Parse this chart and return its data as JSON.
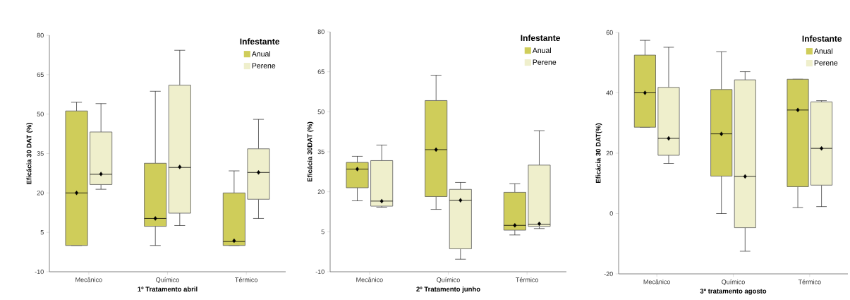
{
  "chart_data": [
    {
      "type": "box",
      "categories": [
        "Mecânico",
        "Químico",
        "Térmico"
      ],
      "xlabel": "1º Tratamento abril",
      "ylabel": "Eficácia 30 DAT (%)",
      "ylim": [
        -10,
        80
      ],
      "yticks": [
        -10,
        5,
        20,
        35,
        50,
        65,
        80
      ],
      "legend": "top right",
      "legend_title": "Infestante",
      "series": [
        {
          "name": "Anual",
          "color": "#cfcd5a",
          "boxes": [
            {
              "low": 0,
              "q1": 0,
              "median": 20,
              "q3": 51.2,
              "high": 54.5,
              "mean": 20
            },
            {
              "low": 0,
              "q1": 7.3,
              "median": 10.3,
              "q3": 31.3,
              "high": 58.7,
              "mean": 10.3
            },
            {
              "low": 0,
              "q1": 0,
              "median": 1.5,
              "q3": 20,
              "high": 28.4,
              "mean": 1.8
            }
          ]
        },
        {
          "name": "Perene",
          "color": "#efefcc",
          "boxes": [
            {
              "low": 21.4,
              "q1": 23.2,
              "median": 27.1,
              "q3": 43.2,
              "high": 54,
              "mean": 27.2
            },
            {
              "low": 7.6,
              "q1": 12.3,
              "median": 29.7,
              "q3": 61,
              "high": 74.3,
              "mean": 29.9
            },
            {
              "low": 10.3,
              "q1": 17.6,
              "median": 27.8,
              "q3": 36.8,
              "high": 48,
              "mean": 27.8
            }
          ]
        }
      ]
    },
    {
      "type": "box",
      "categories": [
        "Mecânico",
        "Químico",
        "Térmico"
      ],
      "xlabel": "2º Tratamento junho",
      "ylabel": "Eficácia 30DAT (%)",
      "ylim": [
        -10,
        80
      ],
      "yticks": [
        -10,
        5,
        20,
        35,
        50,
        65,
        80
      ],
      "legend": "top right",
      "legend_title": "Infestante",
      "series": [
        {
          "name": "Anual",
          "color": "#cfcd5a",
          "boxes": [
            {
              "low": 16.6,
              "q1": 21.5,
              "median": 28.5,
              "q3": 31,
              "high": 33.3,
              "mean": 28.5
            },
            {
              "low": 13.4,
              "q1": 18.2,
              "median": 35.8,
              "q3": 54.2,
              "high": 63.7,
              "mean": 35.8
            },
            {
              "low": 3.8,
              "q1": 5.6,
              "median": 7.4,
              "q3": 19.8,
              "high": 23,
              "mean": 7.4
            }
          ]
        },
        {
          "name": "Perene",
          "color": "#efefcc",
          "boxes": [
            {
              "low": 14.2,
              "q1": 14.6,
              "median": 16.5,
              "q3": 31.7,
              "high": 37.5,
              "mean": 16.5
            },
            {
              "low": -5.3,
              "q1": -1.4,
              "median": 16.8,
              "q3": 20.9,
              "high": 23.5,
              "mean": 16.8
            },
            {
              "low": 6.2,
              "q1": 7,
              "median": 7.8,
              "q3": 30,
              "high": 42.9,
              "mean": 8
            }
          ]
        }
      ]
    },
    {
      "type": "box",
      "categories": [
        "Mecânico",
        "Químico",
        "Térmico"
      ],
      "xlabel": "3º tratamento agosto",
      "ylabel": "Eficácia 30 DAT(%)",
      "ylim": [
        -20,
        60
      ],
      "yticks": [
        -20,
        0,
        20,
        40,
        60
      ],
      "legend": "top right",
      "legend_title": "Infestante",
      "series": [
        {
          "name": "Anual",
          "color": "#cfcd5a",
          "boxes": [
            {
              "low": 28.6,
              "q1": 28.6,
              "median": 40,
              "q3": 52.5,
              "high": 57.4,
              "mean": 40
            },
            {
              "low": 0,
              "q1": 12.4,
              "median": 26.4,
              "q3": 41.1,
              "high": 53.6,
              "mean": 26.4
            },
            {
              "low": 2,
              "q1": 8.9,
              "median": 34.3,
              "q3": 44.5,
              "high": 44.5,
              "mean": 34.3
            }
          ]
        },
        {
          "name": "Perene",
          "color": "#efefcc",
          "boxes": [
            {
              "low": 16.6,
              "q1": 19.3,
              "median": 24.9,
              "q3": 41.8,
              "high": 55.1,
              "mean": 24.9
            },
            {
              "low": -12.5,
              "q1": -4.7,
              "median": 12.3,
              "q3": 44.3,
              "high": 47,
              "mean": 12.3
            },
            {
              "low": 2.3,
              "q1": 9.4,
              "median": 21.6,
              "q3": 37,
              "high": 37.4,
              "mean": 21.6
            }
          ]
        }
      ]
    }
  ]
}
